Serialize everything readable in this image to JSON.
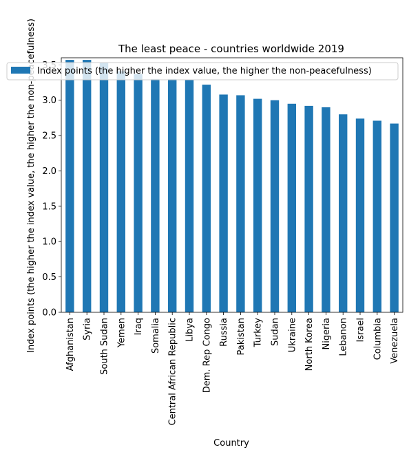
{
  "chart_data": {
    "type": "bar",
    "title": "The least peace - countries worldwide 2019",
    "xlabel": "Country",
    "ylabel": "Index points (the higher the index value, the higher the non-peacefulness)",
    "categories": [
      "Afghanistan",
      "Syria",
      "South Sudan",
      "Yemen",
      "Iraq",
      "Somalia",
      "Central African Republic",
      "Libya",
      "Dem. Rep Congo",
      "Russia",
      "Pakistan",
      "Turkey",
      "Sudan",
      "Ukraine",
      "North Korea",
      "Nigeria",
      "Lebanon",
      "Israel",
      "Columbia",
      "Venezuela"
    ],
    "series": [
      {
        "name": "Index points (the higher the index value, the higher the non-peacefulness)",
        "values": [
          3.57,
          3.57,
          3.53,
          3.41,
          3.37,
          3.3,
          3.3,
          3.29,
          3.22,
          3.08,
          3.07,
          3.02,
          3.0,
          2.95,
          2.92,
          2.9,
          2.8,
          2.74,
          2.71,
          2.67
        ]
      }
    ],
    "ylim": [
      0,
      3.6
    ],
    "yticks": [
      "0.0",
      "0.5",
      "1.0",
      "1.5",
      "2.0",
      "2.5",
      "3.0",
      "3.5"
    ],
    "grid": false,
    "legend_position": "top-left",
    "colors": {
      "bar": "#1f77b4"
    }
  }
}
